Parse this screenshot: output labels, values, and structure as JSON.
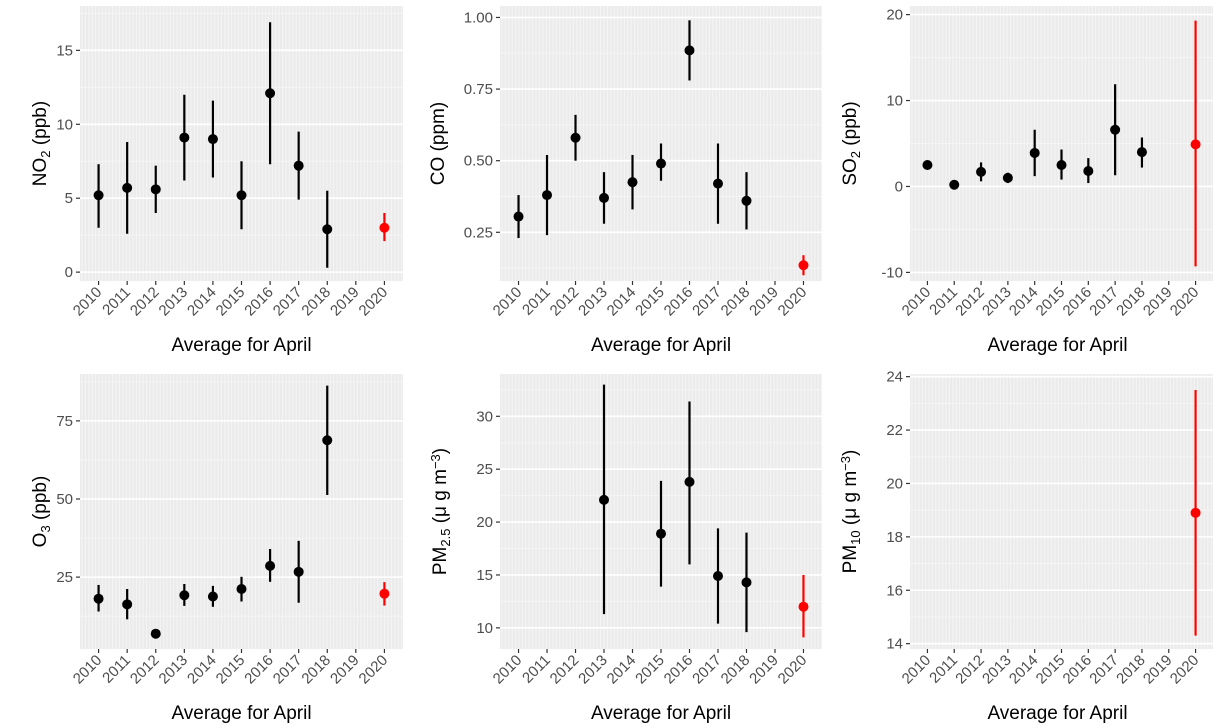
{
  "colors": {
    "panel_background": "#ebebeb",
    "grid_major": "#ffffff",
    "grid_minor": "#f5f5f5",
    "points_2010_2018": "#000000",
    "point_2020": "#ff0000"
  },
  "chart_data": [
    {
      "type": "scatter",
      "title": "",
      "xlabel": "Average for April",
      "ylabel": {
        "base": "NO",
        "sub": "2",
        "rest": " (ppb)"
      },
      "x_tick_labels": [
        "2010",
        "2011",
        "2012",
        "2013",
        "2014",
        "2015",
        "2016",
        "2017",
        "2018",
        "2019",
        "2020"
      ],
      "y_ticks": [
        0,
        5,
        10,
        15
      ],
      "y_tick_labels": [
        "0",
        "5",
        "10",
        "15"
      ],
      "ylim": [
        -0.6,
        18.0
      ],
      "grid": true,
      "points": [
        {
          "x": "2010",
          "y": 5.2,
          "low": 3.0,
          "high": 7.3,
          "color": "#000000"
        },
        {
          "x": "2011",
          "y": 5.7,
          "low": 2.6,
          "high": 8.8,
          "color": "#000000"
        },
        {
          "x": "2012",
          "y": 5.6,
          "low": 4.0,
          "high": 7.2,
          "color": "#000000"
        },
        {
          "x": "2013",
          "y": 9.1,
          "low": 6.2,
          "high": 12.0,
          "color": "#000000"
        },
        {
          "x": "2014",
          "y": 9.0,
          "low": 6.4,
          "high": 11.6,
          "color": "#000000"
        },
        {
          "x": "2015",
          "y": 5.2,
          "low": 2.9,
          "high": 7.5,
          "color": "#000000"
        },
        {
          "x": "2016",
          "y": 12.1,
          "low": 7.3,
          "high": 16.9,
          "color": "#000000"
        },
        {
          "x": "2017",
          "y": 7.2,
          "low": 4.9,
          "high": 9.5,
          "color": "#000000"
        },
        {
          "x": "2018",
          "y": 2.9,
          "low": 0.3,
          "high": 5.5,
          "color": "#000000"
        },
        {
          "x": "2020",
          "y": 3.0,
          "low": 2.1,
          "high": 4.0,
          "color": "#ff0000"
        }
      ]
    },
    {
      "type": "scatter",
      "title": "",
      "xlabel": "Average for April",
      "ylabel": {
        "base": "CO (ppm)",
        "sub": "",
        "rest": ""
      },
      "x_tick_labels": [
        "2010",
        "2011",
        "2012",
        "2013",
        "2014",
        "2015",
        "2016",
        "2017",
        "2018",
        "2019",
        "2020"
      ],
      "y_ticks": [
        0.25,
        0.5,
        0.75,
        1.0
      ],
      "y_tick_labels": [
        "0.25",
        "0.50",
        "0.75",
        "1.00"
      ],
      "ylim": [
        0.08,
        1.04
      ],
      "grid": true,
      "points": [
        {
          "x": "2010",
          "y": 0.305,
          "low": 0.23,
          "high": 0.38,
          "color": "#000000"
        },
        {
          "x": "2011",
          "y": 0.38,
          "low": 0.24,
          "high": 0.52,
          "color": "#000000"
        },
        {
          "x": "2012",
          "y": 0.58,
          "low": 0.5,
          "high": 0.66,
          "color": "#000000"
        },
        {
          "x": "2013",
          "y": 0.37,
          "low": 0.28,
          "high": 0.46,
          "color": "#000000"
        },
        {
          "x": "2014",
          "y": 0.425,
          "low": 0.33,
          "high": 0.52,
          "color": "#000000"
        },
        {
          "x": "2015",
          "y": 0.49,
          "low": 0.43,
          "high": 0.56,
          "color": "#000000"
        },
        {
          "x": "2016",
          "y": 0.885,
          "low": 0.78,
          "high": 0.99,
          "color": "#000000"
        },
        {
          "x": "2017",
          "y": 0.42,
          "low": 0.28,
          "high": 0.56,
          "color": "#000000"
        },
        {
          "x": "2018",
          "y": 0.36,
          "low": 0.26,
          "high": 0.46,
          "color": "#000000"
        },
        {
          "x": "2020",
          "y": 0.135,
          "low": 0.1,
          "high": 0.17,
          "color": "#ff0000"
        }
      ]
    },
    {
      "type": "scatter",
      "title": "",
      "xlabel": "Average for April",
      "ylabel": {
        "base": "SO",
        "sub": "2",
        "rest": " (ppb)"
      },
      "x_tick_labels": [
        "2010",
        "2011",
        "2012",
        "2013",
        "2014",
        "2015",
        "2016",
        "2017",
        "2018",
        "2019",
        "2020"
      ],
      "y_ticks": [
        -10,
        0,
        10,
        20
      ],
      "y_tick_labels": [
        "-10",
        "0",
        "10",
        "20"
      ],
      "ylim": [
        -11.0,
        21.0
      ],
      "grid": true,
      "points": [
        {
          "x": "2010",
          "y": 2.5,
          "low": 2.1,
          "high": 2.9,
          "color": "#000000"
        },
        {
          "x": "2011",
          "y": 0.2,
          "low": 0.0,
          "high": 0.4,
          "color": "#000000"
        },
        {
          "x": "2012",
          "y": 1.7,
          "low": 0.6,
          "high": 2.8,
          "color": "#000000"
        },
        {
          "x": "2013",
          "y": 1.0,
          "low": 0.4,
          "high": 1.6,
          "color": "#000000"
        },
        {
          "x": "2014",
          "y": 3.9,
          "low": 1.2,
          "high": 6.6,
          "color": "#000000"
        },
        {
          "x": "2015",
          "y": 2.5,
          "low": 0.8,
          "high": 4.3,
          "color": "#000000"
        },
        {
          "x": "2016",
          "y": 1.8,
          "low": 0.4,
          "high": 3.3,
          "color": "#000000"
        },
        {
          "x": "2017",
          "y": 6.6,
          "low": 1.3,
          "high": 11.9,
          "color": "#000000"
        },
        {
          "x": "2018",
          "y": 4.0,
          "low": 2.2,
          "high": 5.7,
          "color": "#000000"
        },
        {
          "x": "2020",
          "y": 4.9,
          "low": -9.3,
          "high": 19.3,
          "color": "#ff0000"
        }
      ]
    },
    {
      "type": "scatter",
      "title": "",
      "xlabel": "Average for April",
      "ylabel": {
        "base": "O",
        "sub": "3",
        "rest": " (ppb)"
      },
      "x_tick_labels": [
        "2010",
        "2011",
        "2012",
        "2013",
        "2014",
        "2015",
        "2016",
        "2017",
        "2018",
        "2019",
        "2020"
      ],
      "y_ticks": [
        25,
        50,
        75
      ],
      "y_tick_labels": [
        "25",
        "50",
        "75"
      ],
      "ylim": [
        2.0,
        90.0
      ],
      "grid": true,
      "points": [
        {
          "x": "2010",
          "y": 18.1,
          "low": 14.0,
          "high": 22.5,
          "color": "#000000"
        },
        {
          "x": "2011",
          "y": 16.3,
          "low": 11.5,
          "high": 21.2,
          "color": "#000000"
        },
        {
          "x": "2012",
          "y": 6.9,
          "low": 5.5,
          "high": 8.3,
          "color": "#000000"
        },
        {
          "x": "2013",
          "y": 19.2,
          "low": 15.8,
          "high": 22.8,
          "color": "#000000"
        },
        {
          "x": "2014",
          "y": 18.8,
          "low": 15.5,
          "high": 22.2,
          "color": "#000000"
        },
        {
          "x": "2015",
          "y": 21.2,
          "low": 17.2,
          "high": 25.1,
          "color": "#000000"
        },
        {
          "x": "2016",
          "y": 28.6,
          "low": 23.5,
          "high": 34.0,
          "color": "#000000"
        },
        {
          "x": "2017",
          "y": 26.7,
          "low": 16.8,
          "high": 36.6,
          "color": "#000000"
        },
        {
          "x": "2018",
          "y": 68.8,
          "low": 51.3,
          "high": 86.3,
          "color": "#000000"
        },
        {
          "x": "2020",
          "y": 19.7,
          "low": 15.9,
          "high": 23.4,
          "color": "#ff0000"
        }
      ]
    },
    {
      "type": "scatter",
      "title": "",
      "xlabel": "Average for April",
      "ylabel": {
        "base": "PM",
        "sub": "2.5",
        "rest": " (μ g m",
        "sup": "−3",
        "tail": ")"
      },
      "x_tick_labels": [
        "2010",
        "2011",
        "2012",
        "2013",
        "2014",
        "2015",
        "2016",
        "2017",
        "2018",
        "2019",
        "2020"
      ],
      "y_ticks": [
        10,
        15,
        20,
        25,
        30
      ],
      "y_tick_labels": [
        "10",
        "15",
        "20",
        "25",
        "30"
      ],
      "ylim": [
        8.0,
        34.0
      ],
      "grid": true,
      "points": [
        {
          "x": "2013",
          "y": 22.1,
          "low": 11.3,
          "high": 33.0,
          "color": "#000000"
        },
        {
          "x": "2015",
          "y": 18.9,
          "low": 13.9,
          "high": 23.9,
          "color": "#000000"
        },
        {
          "x": "2016",
          "y": 23.8,
          "low": 16.0,
          "high": 31.4,
          "color": "#000000"
        },
        {
          "x": "2017",
          "y": 14.9,
          "low": 10.4,
          "high": 19.4,
          "color": "#000000"
        },
        {
          "x": "2018",
          "y": 14.3,
          "low": 9.6,
          "high": 19.0,
          "color": "#000000"
        },
        {
          "x": "2020",
          "y": 12.0,
          "low": 9.1,
          "high": 15.0,
          "color": "#ff0000"
        }
      ]
    },
    {
      "type": "scatter",
      "title": "",
      "xlabel": "Average for April",
      "ylabel": {
        "base": "PM",
        "sub": "10",
        "rest": " (μ g m",
        "sup": "−3",
        "tail": ")"
      },
      "x_tick_labels": [
        "2010",
        "2011",
        "2012",
        "2013",
        "2014",
        "2015",
        "2016",
        "2017",
        "2018",
        "2019",
        "2020"
      ],
      "y_ticks": [
        14,
        16,
        18,
        20,
        22,
        24
      ],
      "y_tick_labels": [
        "14",
        "16",
        "18",
        "20",
        "22",
        "24"
      ],
      "ylim": [
        13.8,
        24.1
      ],
      "grid": true,
      "points": [
        {
          "x": "2020",
          "y": 18.9,
          "low": 14.3,
          "high": 23.5,
          "color": "#ff0000"
        }
      ]
    }
  ]
}
